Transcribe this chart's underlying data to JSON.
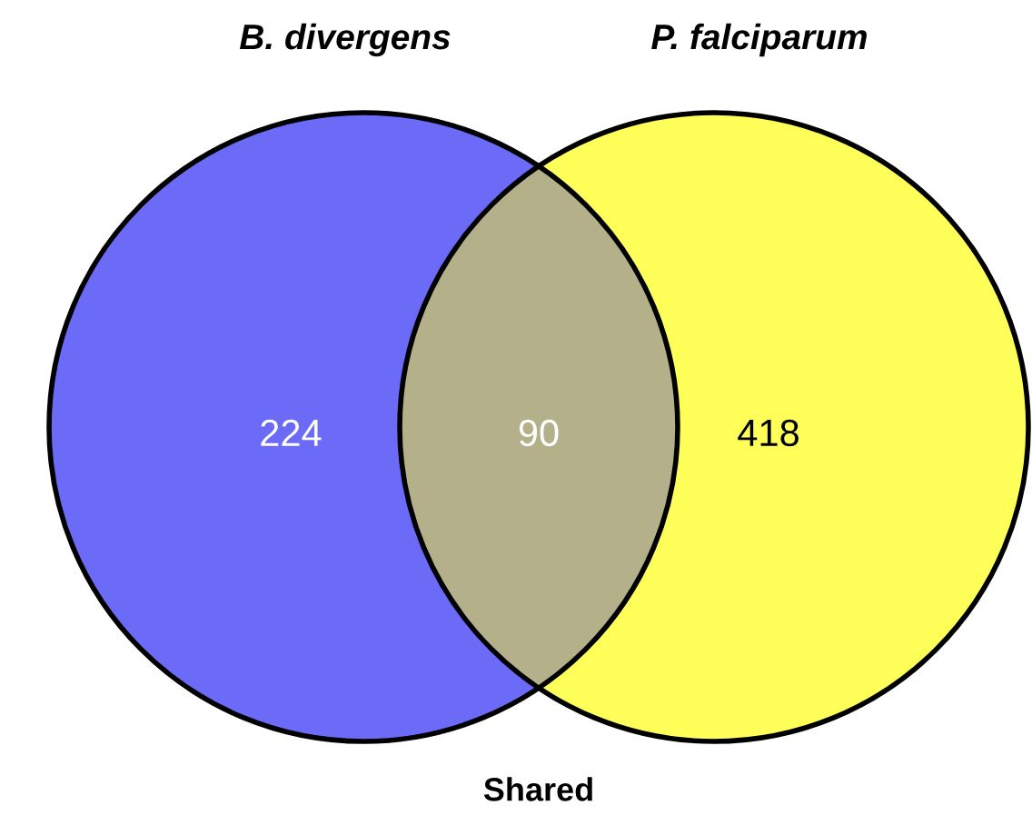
{
  "chart_data": {
    "type": "other",
    "categories": [
      "B. divergens",
      "P. falciparum",
      "Shared"
    ],
    "values": [
      224,
      418,
      90
    ],
    "data_labels": true,
    "colors": [
      "#6b6bf7",
      "#ffff59",
      "#b4b08a"
    ]
  }
}
